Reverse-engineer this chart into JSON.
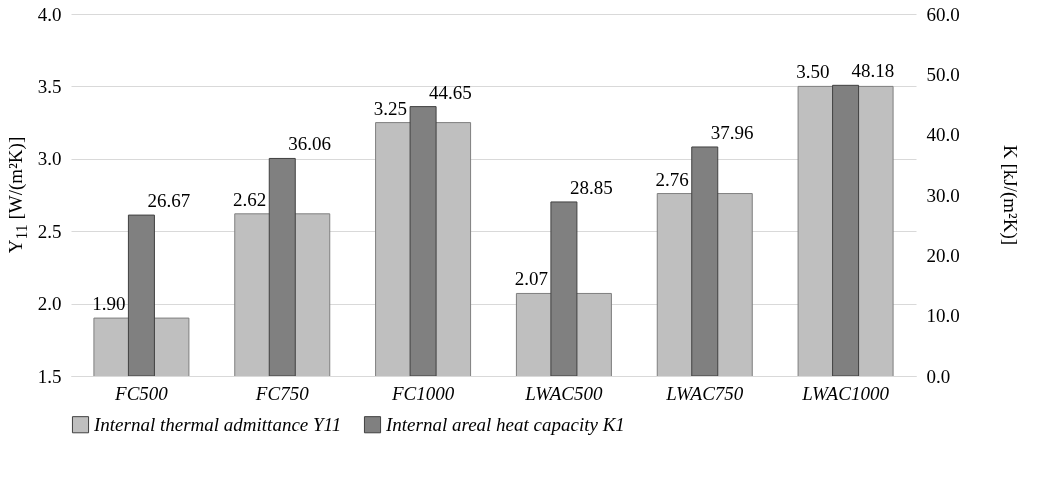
{
  "chart_data": {
    "type": "bar",
    "ylabel": "Y$_{11}$ [W/(m²K)]",
    "y2label": "K [kJ/(m²K)]",
    "categories": [
      "FC500",
      "FC750",
      "FC1000",
      "LWAC500",
      "LWAC750",
      "LWAC1000"
    ],
    "series": [
      {
        "name": "Internal thermal admittance Y11",
        "color": "#bfbfbf",
        "values": [
          1.9,
          2.62,
          3.25,
          2.07,
          2.76,
          3.5
        ],
        "value_labels": [
          "1.90",
          "2.62",
          "3.25",
          "2.07",
          "2.76",
          "3.50"
        ]
      },
      {
        "name": "Internal areal heat capacity K1",
        "color": "#808080",
        "axis": "y2",
        "values": [
          26.67,
          36.06,
          44.65,
          28.85,
          37.96,
          48.18
        ],
        "value_labels": [
          "26.67",
          "36.06",
          "44.65",
          "28.85",
          "37.96",
          "48.18"
        ]
      }
    ],
    "ylim": [
      1.5,
      4
    ],
    "yticks": [
      {
        "value": 1.5,
        "label": "1.5"
      },
      {
        "value": 2,
        "label": "2.0"
      },
      {
        "value": 2.5,
        "label": "2.5"
      },
      {
        "value": 3,
        "label": "3.0"
      },
      {
        "value": 3.5,
        "label": "3.5"
      },
      {
        "value": 4,
        "label": "4.0"
      }
    ],
    "y2lim": [
      0,
      60
    ],
    "y2ticks": [
      {
        "value": 0,
        "label": "0.0"
      },
      {
        "value": 10,
        "label": "10.0"
      },
      {
        "value": 20,
        "label": "20.0"
      },
      {
        "value": 30,
        "label": "30.0"
      },
      {
        "value": 40,
        "label": "40.0"
      },
      {
        "value": 50,
        "label": "50.0"
      },
      {
        "value": 60,
        "label": "60.0"
      }
    ],
    "grid": "y",
    "legend": "bottom"
  }
}
